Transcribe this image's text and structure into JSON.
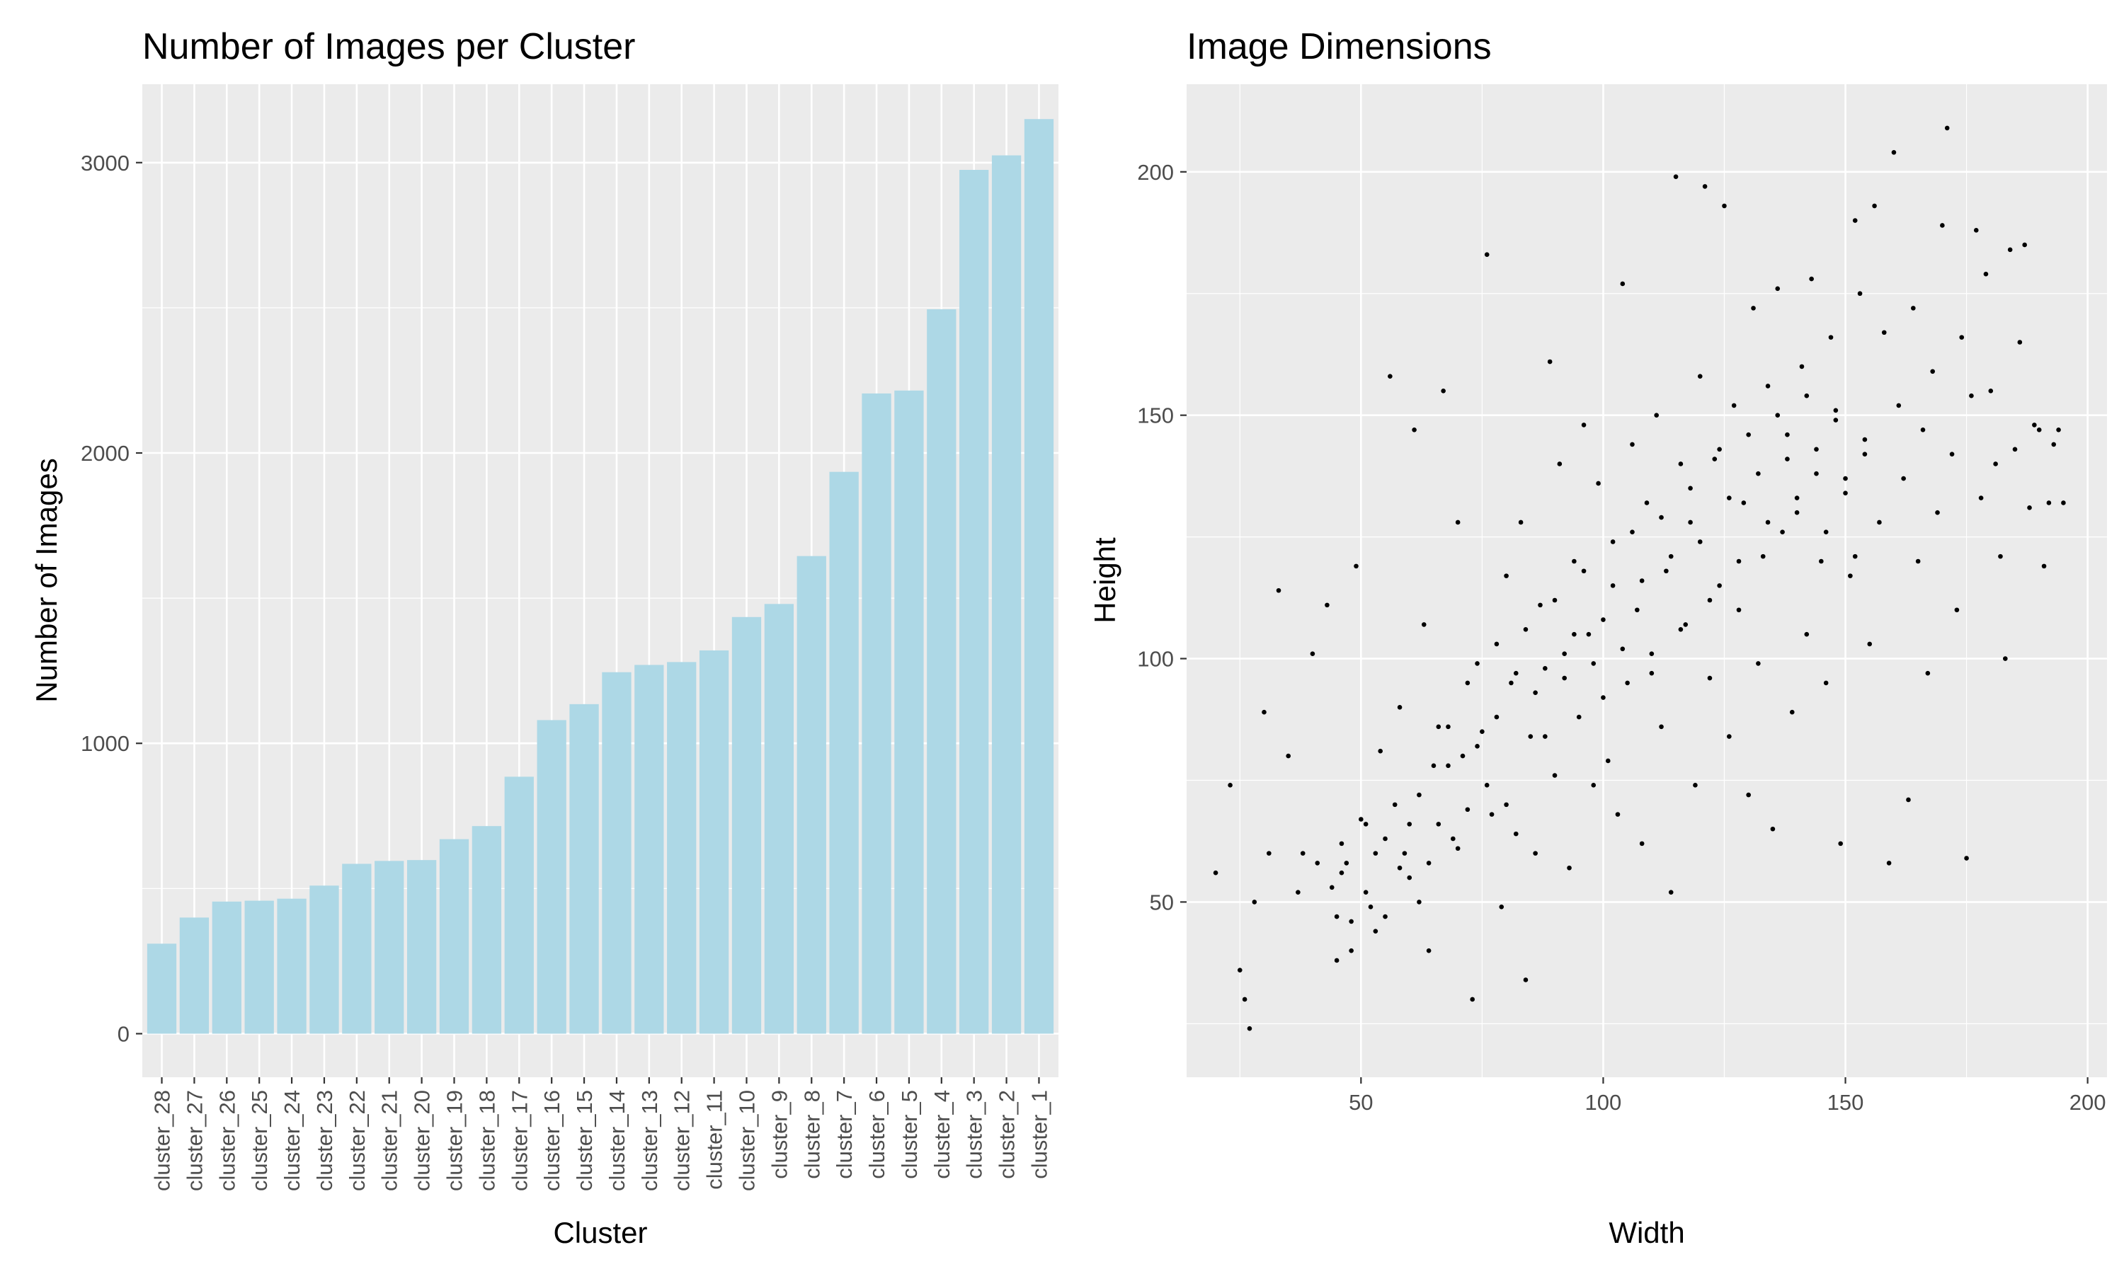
{
  "chart_data": [
    {
      "type": "bar",
      "title": "Number of Images per Cluster",
      "xlabel": "Cluster",
      "ylabel": "Number of Images",
      "ylim": [
        -150,
        3270
      ],
      "yticks": [
        0,
        1000,
        2000,
        3000
      ],
      "grid": true,
      "categories": [
        "cluster_28",
        "cluster_27",
        "cluster_26",
        "cluster_25",
        "cluster_24",
        "cluster_23",
        "cluster_22",
        "cluster_21",
        "cluster_20",
        "cluster_19",
        "cluster_18",
        "cluster_17",
        "cluster_16",
        "cluster_15",
        "cluster_14",
        "cluster_13",
        "cluster_12",
        "cluster_11",
        "cluster_10",
        "cluster_9",
        "cluster_8",
        "cluster_7",
        "cluster_6",
        "cluster_5",
        "cluster_4",
        "cluster_3",
        "cluster_2",
        "cluster_1"
      ],
      "values": [
        310,
        400,
        455,
        458,
        465,
        510,
        585,
        595,
        598,
        670,
        715,
        885,
        1080,
        1135,
        1245,
        1270,
        1280,
        1320,
        1435,
        1480,
        1645,
        1935,
        2205,
        2215,
        2495,
        2975,
        3025,
        3150
      ],
      "bar_color": "#ADD8E6",
      "panel_bg": "#EBEBEB"
    },
    {
      "type": "scatter",
      "title": "Image Dimensions",
      "xlabel": "Width",
      "ylabel": "Height",
      "xlim": [
        14,
        204
      ],
      "ylim": [
        14,
        218
      ],
      "xticks": [
        50,
        100,
        150,
        200
      ],
      "yticks": [
        50,
        100,
        150,
        200
      ],
      "grid": true,
      "point_color": "#000000",
      "panel_bg": "#EBEBEB",
      "points": [
        [
          20,
          56
        ],
        [
          23,
          74
        ],
        [
          25,
          36
        ],
        [
          26,
          30
        ],
        [
          27,
          24
        ],
        [
          28,
          50
        ],
        [
          30,
          89
        ],
        [
          31,
          60
        ],
        [
          33,
          114
        ],
        [
          35,
          80
        ],
        [
          37,
          52
        ],
        [
          38,
          60
        ],
        [
          40,
          101
        ],
        [
          41,
          58
        ],
        [
          43,
          111
        ],
        [
          44,
          53
        ],
        [
          45,
          47
        ],
        [
          46,
          62
        ],
        [
          47,
          58
        ],
        [
          48,
          40
        ],
        [
          49,
          119
        ],
        [
          50,
          67
        ],
        [
          51,
          66
        ],
        [
          52,
          49
        ],
        [
          53,
          44
        ],
        [
          54,
          81
        ],
        [
          55,
          63
        ],
        [
          56,
          158
        ],
        [
          57,
          70
        ],
        [
          58,
          90
        ],
        [
          59,
          60
        ],
        [
          60,
          55
        ],
        [
          61,
          147
        ],
        [
          62,
          50
        ],
        [
          63,
          107
        ],
        [
          64,
          40
        ],
        [
          65,
          78
        ],
        [
          66,
          66
        ],
        [
          67,
          155
        ],
        [
          68,
          86
        ],
        [
          69,
          63
        ],
        [
          70,
          128
        ],
        [
          71,
          80
        ],
        [
          72,
          69
        ],
        [
          73,
          30
        ],
        [
          74,
          99
        ],
        [
          75,
          85
        ],
        [
          76,
          183
        ],
        [
          77,
          68
        ],
        [
          78,
          103
        ],
        [
          79,
          49
        ],
        [
          80,
          117
        ],
        [
          81,
          95
        ],
        [
          82,
          64
        ],
        [
          83,
          128
        ],
        [
          84,
          34
        ],
        [
          85,
          84
        ],
        [
          86,
          60
        ],
        [
          87,
          111
        ],
        [
          88,
          98
        ],
        [
          89,
          161
        ],
        [
          90,
          76
        ],
        [
          91,
          140
        ],
        [
          92,
          101
        ],
        [
          93,
          57
        ],
        [
          94,
          120
        ],
        [
          95,
          88
        ],
        [
          96,
          148
        ],
        [
          97,
          105
        ],
        [
          98,
          74
        ],
        [
          99,
          136
        ],
        [
          100,
          92
        ],
        [
          101,
          79
        ],
        [
          102,
          124
        ],
        [
          103,
          68
        ],
        [
          104,
          177
        ],
        [
          105,
          95
        ],
        [
          106,
          144
        ],
        [
          107,
          110
        ],
        [
          108,
          62
        ],
        [
          109,
          132
        ],
        [
          110,
          101
        ],
        [
          111,
          150
        ],
        [
          112,
          86
        ],
        [
          113,
          118
        ],
        [
          114,
          52
        ],
        [
          115,
          199
        ],
        [
          116,
          140
        ],
        [
          117,
          107
        ],
        [
          118,
          128
        ],
        [
          119,
          74
        ],
        [
          120,
          158
        ],
        [
          121,
          197
        ],
        [
          122,
          96
        ],
        [
          123,
          141
        ],
        [
          124,
          115
        ],
        [
          125,
          193
        ],
        [
          126,
          84
        ],
        [
          127,
          152
        ],
        [
          128,
          110
        ],
        [
          129,
          132
        ],
        [
          130,
          72
        ],
        [
          131,
          172
        ],
        [
          132,
          99
        ],
        [
          133,
          121
        ],
        [
          134,
          156
        ],
        [
          135,
          65
        ],
        [
          136,
          176
        ],
        [
          137,
          126
        ],
        [
          138,
          146
        ],
        [
          139,
          89
        ],
        [
          140,
          133
        ],
        [
          141,
          160
        ],
        [
          142,
          105
        ],
        [
          143,
          178
        ],
        [
          144,
          143
        ],
        [
          145,
          120
        ],
        [
          146,
          95
        ],
        [
          147,
          166
        ],
        [
          148,
          151
        ],
        [
          149,
          62
        ],
        [
          150,
          137
        ],
        [
          151,
          117
        ],
        [
          152,
          190
        ],
        [
          153,
          175
        ],
        [
          154,
          145
        ],
        [
          155,
          103
        ],
        [
          156,
          193
        ],
        [
          157,
          128
        ],
        [
          158,
          167
        ],
        [
          159,
          58
        ],
        [
          160,
          204
        ],
        [
          161,
          152
        ],
        [
          162,
          137
        ],
        [
          163,
          71
        ],
        [
          164,
          172
        ],
        [
          165,
          120
        ],
        [
          166,
          147
        ],
        [
          167,
          97
        ],
        [
          168,
          159
        ],
        [
          169,
          130
        ],
        [
          170,
          189
        ],
        [
          171,
          209
        ],
        [
          172,
          142
        ],
        [
          173,
          110
        ],
        [
          174,
          166
        ],
        [
          175,
          59
        ],
        [
          176,
          154
        ],
        [
          177,
          188
        ],
        [
          178,
          133
        ],
        [
          179,
          179
        ],
        [
          180,
          155
        ],
        [
          181,
          140
        ],
        [
          182,
          121
        ],
        [
          183,
          100
        ],
        [
          184,
          184
        ],
        [
          185,
          143
        ],
        [
          186,
          165
        ],
        [
          187,
          185
        ],
        [
          188,
          131
        ],
        [
          189,
          148
        ],
        [
          190,
          147
        ],
        [
          191,
          119
        ],
        [
          192,
          132
        ],
        [
          193,
          144
        ],
        [
          194,
          147
        ],
        [
          195,
          132
        ],
        [
          45,
          38
        ],
        [
          46,
          56
        ],
        [
          48,
          46
        ],
        [
          51,
          52
        ],
        [
          53,
          60
        ],
        [
          55,
          47
        ],
        [
          58,
          57
        ],
        [
          60,
          66
        ],
        [
          62,
          72
        ],
        [
          64,
          58
        ],
        [
          66,
          86
        ],
        [
          68,
          78
        ],
        [
          70,
          61
        ],
        [
          72,
          95
        ],
        [
          74,
          82
        ],
        [
          76,
          74
        ],
        [
          78,
          88
        ],
        [
          80,
          70
        ],
        [
          82,
          97
        ],
        [
          84,
          106
        ],
        [
          86,
          93
        ],
        [
          88,
          84
        ],
        [
          90,
          112
        ],
        [
          92,
          96
        ],
        [
          94,
          105
        ],
        [
          96,
          118
        ],
        [
          98,
          99
        ],
        [
          100,
          108
        ],
        [
          102,
          115
        ],
        [
          104,
          102
        ],
        [
          106,
          126
        ],
        [
          108,
          116
        ],
        [
          110,
          97
        ],
        [
          112,
          129
        ],
        [
          114,
          121
        ],
        [
          116,
          106
        ],
        [
          118,
          135
        ],
        [
          120,
          124
        ],
        [
          122,
          112
        ],
        [
          124,
          143
        ],
        [
          126,
          133
        ],
        [
          128,
          120
        ],
        [
          130,
          146
        ],
        [
          132,
          138
        ],
        [
          134,
          128
        ],
        [
          136,
          150
        ],
        [
          138,
          141
        ],
        [
          140,
          130
        ],
        [
          142,
          154
        ],
        [
          144,
          138
        ],
        [
          146,
          126
        ],
        [
          148,
          149
        ],
        [
          150,
          134
        ],
        [
          152,
          121
        ],
        [
          154,
          142
        ]
      ]
    }
  ]
}
